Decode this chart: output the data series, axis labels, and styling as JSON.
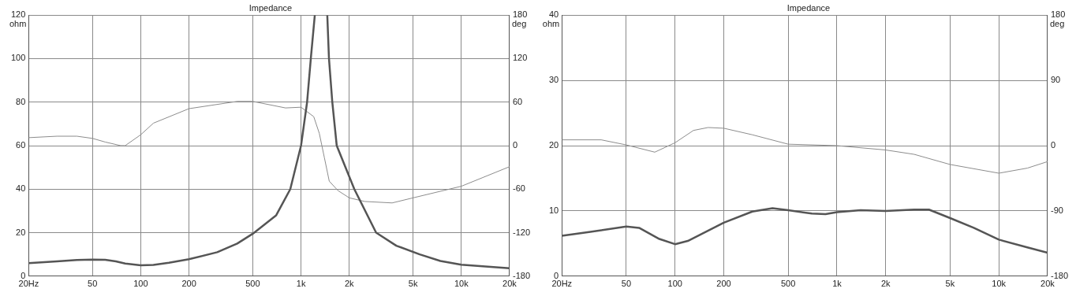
{
  "chart_data": [
    {
      "type": "line",
      "title": "Impedance",
      "ylabel": "ohm",
      "y2label": "deg",
      "log": "x",
      "grid": true,
      "legend": false,
      "xlim": [
        20,
        20000
      ],
      "xticks": [
        {
          "value": 20,
          "label": "20Hz"
        },
        50,
        100,
        200,
        500,
        {
          "value": 1000,
          "label": "1k"
        },
        {
          "value": 2000,
          "label": "2k"
        },
        {
          "value": 5000,
          "label": "5k"
        },
        {
          "value": 10000,
          "label": "10k"
        },
        {
          "value": 20000,
          "label": "20k"
        }
      ],
      "ylim": [
        0,
        120
      ],
      "yticks": [
        0,
        20,
        40,
        60,
        80,
        100,
        120
      ],
      "y2lim": [
        -180,
        180
      ],
      "y2ticks": [
        -180,
        -120,
        -60,
        0,
        60,
        120,
        180
      ],
      "series": [
        {
          "color": "#555555",
          "axis": "y",
          "x": [
            20,
            30,
            40,
            50,
            60,
            70,
            80,
            100,
            120,
            150,
            200,
            300,
            400,
            500,
            700,
            857,
            1000,
            1091,
            1151,
            1219,
            1330,
            1458,
            1494,
            1567,
            1670,
            2150,
            2940,
            3930,
            5500,
            7400,
            10000,
            20000
          ],
          "values": [
            6,
            6.8,
            7.4,
            7.6,
            7.5,
            6.8,
            5.8,
            5,
            5.2,
            6.2,
            7.8,
            11,
            15,
            19.5,
            28,
            40,
            60,
            80,
            100,
            120,
            null,
            120,
            100,
            80,
            60,
            40,
            20,
            14,
            10,
            7,
            5.3,
            3.6
          ]
        },
        {
          "color": "#8c8c8c",
          "axis": "y2",
          "x": [
            20,
            30,
            40,
            50,
            60,
            75,
            80,
            100,
            120,
            200,
            400,
            500,
            800,
            1000,
            1200,
            1300,
            1400,
            1500,
            1700,
            2000,
            2500,
            3700,
            5000,
            10000,
            20000
          ],
          "values": [
            11,
            13,
            13,
            10,
            5,
            0,
            0,
            15,
            31,
            51,
            61,
            61,
            52,
            53,
            40,
            17,
            -17,
            -49,
            -62,
            -72,
            -77,
            -79,
            -72,
            -56,
            -29
          ]
        }
      ]
    },
    {
      "type": "line",
      "title": "Impedance",
      "ylabel": "ohm",
      "y2label": "deg",
      "log": "x",
      "grid": true,
      "legend": false,
      "xlim": [
        20,
        20000
      ],
      "xticks": [
        {
          "value": 20,
          "label": "20Hz"
        },
        50,
        100,
        200,
        500,
        {
          "value": 1000,
          "label": "1k"
        },
        {
          "value": 2000,
          "label": "2k"
        },
        {
          "value": 5000,
          "label": "5k"
        },
        {
          "value": 10000,
          "label": "10k"
        },
        {
          "value": 20000,
          "label": "20k"
        }
      ],
      "ylim": [
        0,
        40
      ],
      "yticks": [
        0,
        10,
        20,
        30,
        40
      ],
      "y2lim": [
        -180,
        180
      ],
      "y2ticks": [
        -180,
        -90,
        0,
        90,
        180
      ],
      "series": [
        {
          "color": "#555555",
          "axis": "y",
          "x": [
            20,
            30,
            50,
            60,
            80,
            100,
            120,
            200,
            300,
            400,
            500,
            700,
            850,
            1000,
            1400,
            2000,
            3000,
            3700,
            5000,
            7000,
            10000,
            15000,
            20000
          ],
          "values": [
            6.2,
            6.8,
            7.6,
            7.4,
            5.7,
            4.9,
            5.4,
            8.2,
            9.9,
            10.4,
            10.1,
            9.6,
            9.5,
            9.8,
            10.1,
            10,
            10.2,
            10.2,
            8.9,
            7.4,
            5.6,
            4.4,
            3.6
          ]
        },
        {
          "color": "#8c8c8c",
          "axis": "y2",
          "x": [
            20,
            35,
            50,
            75,
            100,
            130,
            160,
            200,
            300,
            500,
            1000,
            2000,
            3000,
            5000,
            10000,
            15000,
            20000
          ],
          "values": [
            8,
            8,
            1,
            -9,
            4,
            21,
            25,
            24,
            15,
            2,
            0,
            -6,
            -12,
            -26,
            -38,
            -31,
            -22
          ]
        }
      ]
    }
  ]
}
